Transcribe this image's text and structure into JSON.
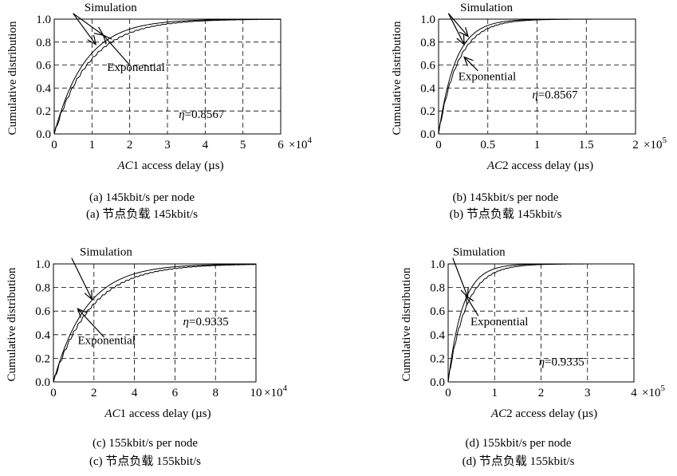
{
  "chart_data": [
    {
      "type": "line",
      "ylabel": "Cumulative distribution",
      "xlabel_italic": "AC",
      "xlabel_rest": "1 access delay (µs)",
      "x_ticks": [
        "0",
        "1",
        "2",
        "3",
        "4",
        "5",
        "6"
      ],
      "x_multiplier": "×10",
      "x_multiplier_exp": "4",
      "y_ticks": [
        "0.0",
        "0.2",
        "0.4",
        "0.6",
        "0.8",
        "1.0"
      ],
      "xlim": [
        0,
        6
      ],
      "ylim": [
        0,
        1
      ],
      "grid": true,
      "eta_symbol": "η",
      "eta_value": "=0.8567",
      "eta_pos": [
        3.3,
        0.14
      ],
      "sim_label": "Simulation",
      "exp_label": "Exponential",
      "sim_label_pos": [
        0.8,
        1.07
      ],
      "exp_label_pos": [
        1.4,
        0.55
      ],
      "sim_arrows": [
        [
          0.5,
          1.05,
          1.1,
          0.78
        ],
        [
          0.5,
          1.05,
          1.3,
          0.86
        ]
      ],
      "exp_arrows": [
        [
          2.0,
          0.6,
          1.3,
          0.86
        ]
      ],
      "exp_rate": 1.22,
      "sim_rate": 1.06,
      "caption_en": "(a) 145kbit/s per node",
      "caption_zh": "(a) 节点负载 145kbit/s"
    },
    {
      "type": "line",
      "ylabel": "Cumulative distribution",
      "xlabel_italic": "AC",
      "xlabel_rest": "2 access delay (µs)",
      "x_ticks": [
        "0",
        "0.5",
        "1",
        "1.5",
        "2"
      ],
      "x_multiplier": "×10",
      "x_multiplier_exp": "5",
      "y_ticks": [
        "0.0",
        "0.2",
        "0.4",
        "0.6",
        "0.8",
        "1.0"
      ],
      "xlim": [
        0,
        2
      ],
      "ylim": [
        0,
        1
      ],
      "grid": true,
      "eta_symbol": "η",
      "eta_value": "=0.8567",
      "eta_pos": [
        0.95,
        0.31
      ],
      "sim_label": "Simulation",
      "exp_label": "Exponential",
      "sim_label_pos": [
        0.22,
        1.07
      ],
      "exp_label_pos": [
        0.2,
        0.47
      ],
      "sim_arrows": [
        [
          0.1,
          1.05,
          0.26,
          0.78
        ],
        [
          0.1,
          1.05,
          0.3,
          0.85
        ]
      ],
      "exp_arrows": [
        [
          0.4,
          0.55,
          0.26,
          0.67
        ]
      ],
      "exp_rate": 5.8,
      "sim_rate": 5.0,
      "caption_en": "(b) 145kbit/s per node",
      "caption_zh": "(b) 节点负载 145kbit/s"
    },
    {
      "type": "line",
      "ylabel": "Cumulative distribution",
      "xlabel_italic": "AC",
      "xlabel_rest": "1 access delay (µs)",
      "x_ticks": [
        "0",
        "2",
        "4",
        "6",
        "8",
        "10"
      ],
      "x_multiplier": "×10",
      "x_multiplier_exp": "4",
      "y_ticks": [
        "0.0",
        "0.2",
        "0.4",
        "0.6",
        "0.8",
        "1.0"
      ],
      "xlim": [
        0,
        10
      ],
      "ylim": [
        0,
        1
      ],
      "grid": true,
      "eta_symbol": "η",
      "eta_value": "=0.9335",
      "eta_pos": [
        6.4,
        0.48
      ],
      "sim_label": "Simulation",
      "exp_label": "Exponential",
      "sim_label_pos": [
        1.3,
        1.07
      ],
      "exp_label_pos": [
        1.2,
        0.32
      ],
      "sim_arrows": [
        [
          0.9,
          1.05,
          1.9,
          0.7
        ]
      ],
      "exp_arrows": [
        [
          2.5,
          0.38,
          1.2,
          0.62
        ]
      ],
      "exp_rate": 0.62,
      "sim_rate": 0.54,
      "caption_en": "(c) 155kbit/s per node",
      "caption_zh": "(c) 节点负载 155kbit/s"
    },
    {
      "type": "line",
      "ylabel": "Cumulative distribution",
      "xlabel_italic": "AC",
      "xlabel_rest": "2 access delay (µs)",
      "x_ticks": [
        "0",
        "1",
        "2",
        "3",
        "4"
      ],
      "x_multiplier": "×10",
      "x_multiplier_exp": "5",
      "y_ticks": [
        "0.0",
        "0.2",
        "0.4",
        "0.6",
        "0.8",
        "1.0"
      ],
      "xlim": [
        0,
        4
      ],
      "ylim": [
        0,
        1
      ],
      "grid": true,
      "eta_symbol": "η",
      "eta_value": "=0.9335",
      "eta_pos": [
        1.95,
        0.14
      ],
      "sim_label": "Simulation",
      "exp_label": "Exponential",
      "sim_label_pos": [
        0.1,
        1.07
      ],
      "exp_label_pos": [
        0.48,
        0.48
      ],
      "sim_arrows": [
        [
          0.1,
          1.05,
          0.42,
          0.72
        ]
      ],
      "exp_arrows": [
        [
          0.65,
          0.56,
          0.38,
          0.73
        ]
      ],
      "exp_rate": 3.2,
      "sim_rate": 2.6,
      "caption_en": "(d) 155kbit/s per node",
      "caption_zh": "(d) 节点负载 155kbit/s"
    }
  ]
}
